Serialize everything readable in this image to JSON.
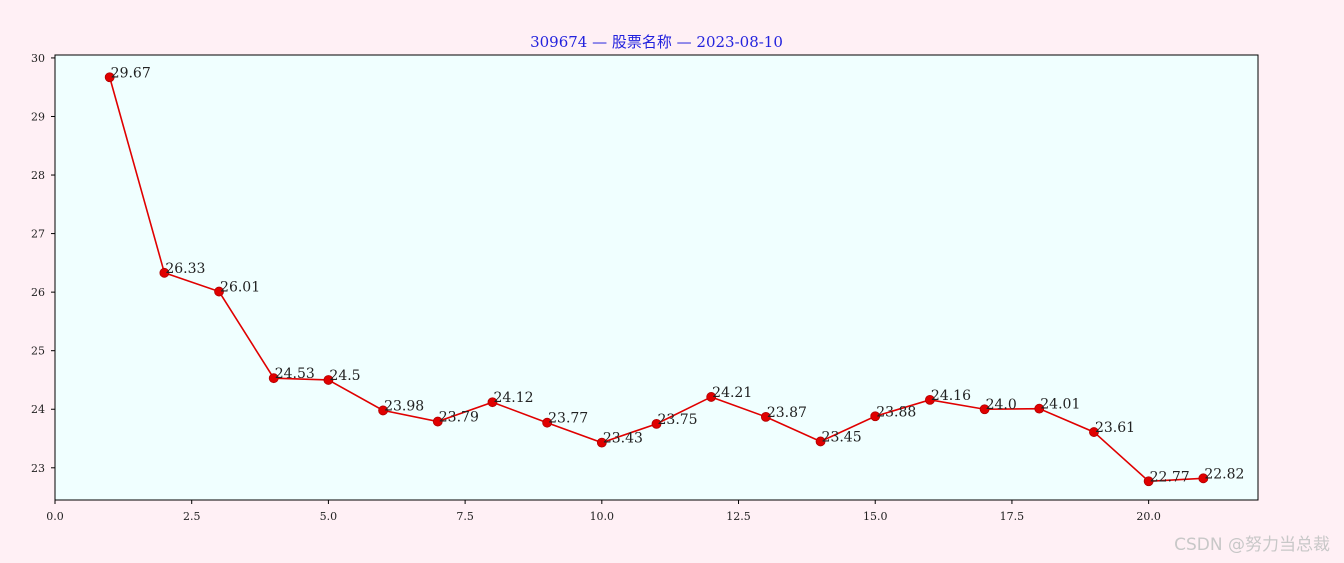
{
  "watermark": "CSDN @努力当总裁",
  "colors": {
    "page_background": "#fff0f5",
    "plot_background": "#f0ffff",
    "line": "#e00000",
    "marker": "#e00000",
    "title": "#2222dd"
  },
  "chart_data": {
    "type": "line",
    "title": "309674 — 股票名称 — 2023-08-10",
    "xlabel": "",
    "ylabel": "",
    "x": [
      1,
      2,
      3,
      4,
      5,
      6,
      7,
      8,
      9,
      10,
      11,
      12,
      13,
      14,
      15,
      16,
      17,
      18,
      19,
      20,
      21
    ],
    "series": [
      {
        "values": [
          29.67,
          26.33,
          26.01,
          24.53,
          24.5,
          23.98,
          23.79,
          24.12,
          23.77,
          23.43,
          23.75,
          24.21,
          23.87,
          23.45,
          23.88,
          24.16,
          24.0,
          24.01,
          23.61,
          22.77,
          22.82
        ],
        "labels": [
          "29.67",
          "26.33",
          "26.01",
          "24.53",
          "24.5",
          "23.98",
          "23.79",
          "24.12",
          "23.77",
          "23.43",
          "23.75",
          "24.21",
          "23.87",
          "23.45",
          "23.88",
          "24.16",
          "24.0",
          "24.01",
          "23.61",
          "22.77",
          "22.82"
        ]
      }
    ],
    "xlim": [
      0,
      22
    ],
    "ylim": [
      22.45,
      30.05
    ],
    "xticks": [
      0,
      2.5,
      5,
      7.5,
      10,
      12.5,
      15,
      17.5,
      20
    ],
    "xtick_labels": [
      "0.0",
      "2.5",
      "5.0",
      "7.5",
      "10.0",
      "12.5",
      "15.0",
      "17.5",
      "20.0"
    ],
    "yticks": [
      23,
      24,
      25,
      26,
      27,
      28,
      29,
      30
    ],
    "ytick_labels": [
      "23",
      "24",
      "25",
      "26",
      "27",
      "28",
      "29",
      "30"
    ],
    "grid": false,
    "markers": "circle"
  }
}
